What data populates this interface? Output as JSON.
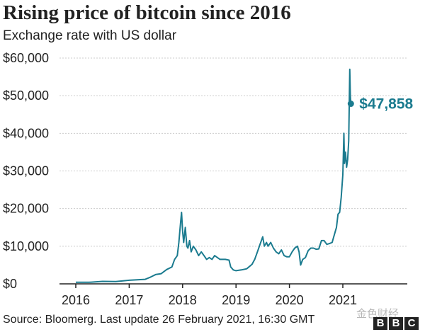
{
  "title": "Rising price of bitcoin since 2016",
  "subtitle": "Exchange rate with US dollar",
  "source": "Source: Bloomerg. Last update 26 February 2021, 16:30 GMT",
  "watermark": "金色财经",
  "logo": [
    "B",
    "B",
    "C"
  ],
  "colors": {
    "line": "#1b7b8f",
    "label": "#1b7b8f",
    "grid": "#cccccc",
    "axis": "#222222"
  },
  "chart_data": {
    "type": "line",
    "title": "Rising price of bitcoin since 2016",
    "subtitle": "Exchange rate with US dollar",
    "xlabel": "",
    "ylabel": "",
    "xlim": [
      2016,
      2022.05
    ],
    "ylim": [
      0,
      60000
    ],
    "grid": true,
    "y_ticks": [
      0,
      10000,
      20000,
      30000,
      40000,
      50000,
      60000
    ],
    "y_tick_labels": [
      "$0",
      "$10,000",
      "$20,000",
      "$30,000",
      "$40,000",
      "$50,000",
      "$60,000"
    ],
    "x_ticks": [
      2016,
      2017,
      2018,
      2019,
      2020,
      2021
    ],
    "x_tick_labels": [
      "2016",
      "2017",
      "2018",
      "2019",
      "2020",
      "2021"
    ],
    "annotation": {
      "label": "$47,858",
      "x": 2021.15,
      "y": 47858
    },
    "series": [
      {
        "x": [
          2016.0,
          2016.25,
          2016.5,
          2016.75,
          2017.0,
          2017.15,
          2017.3,
          2017.4,
          2017.5,
          2017.6,
          2017.7,
          2017.8,
          2017.85,
          2017.9,
          2017.93,
          2017.96,
          2017.98,
          2018.0,
          2018.02,
          2018.05,
          2018.08,
          2018.1,
          2018.13,
          2018.16,
          2018.2,
          2018.25,
          2018.3,
          2018.35,
          2018.4,
          2018.45,
          2018.5,
          2018.55,
          2018.6,
          2018.7,
          2018.8,
          2018.87,
          2018.9,
          2018.95,
          2019.0,
          2019.1,
          2019.2,
          2019.3,
          2019.35,
          2019.4,
          2019.45,
          2019.5,
          2019.53,
          2019.57,
          2019.6,
          2019.65,
          2019.7,
          2019.75,
          2019.8,
          2019.85,
          2019.9,
          2019.95,
          2020.0,
          2020.05,
          2020.1,
          2020.15,
          2020.18,
          2020.21,
          2020.25,
          2020.3,
          2020.35,
          2020.4,
          2020.45,
          2020.5,
          2020.55,
          2020.6,
          2020.65,
          2020.7,
          2020.75,
          2020.8,
          2020.85,
          2020.88,
          2020.91,
          2020.94,
          2020.97,
          2021.0,
          2021.02,
          2021.03,
          2021.05,
          2021.07,
          2021.09,
          2021.11,
          2021.12,
          2021.13,
          2021.14,
          2021.15
        ],
        "values": [
          430,
          420,
          650,
          600,
          950,
          1100,
          1200,
          1800,
          2500,
          2700,
          3800,
          4500,
          6500,
          7500,
          11000,
          16000,
          19000,
          14000,
          11000,
          15000,
          10000,
          9500,
          11500,
          8500,
          10000,
          9000,
          7500,
          8500,
          7500,
          6500,
          7000,
          6500,
          7500,
          6500,
          6500,
          6300,
          4500,
          3700,
          3500,
          3700,
          4000,
          5200,
          6500,
          8500,
          10500,
          12500,
          10000,
          11000,
          10000,
          11000,
          9500,
          8500,
          8000,
          9000,
          7500,
          7200,
          7200,
          8500,
          9500,
          10000,
          8500,
          5000,
          6500,
          7000,
          8800,
          9500,
          9500,
          9200,
          9300,
          11500,
          11500,
          10500,
          10700,
          11000,
          13500,
          15000,
          18500,
          19000,
          23000,
          29000,
          40000,
          32000,
          35000,
          31000,
          33000,
          38000,
          47000,
          57000,
          50000,
          47858
        ]
      }
    ]
  }
}
